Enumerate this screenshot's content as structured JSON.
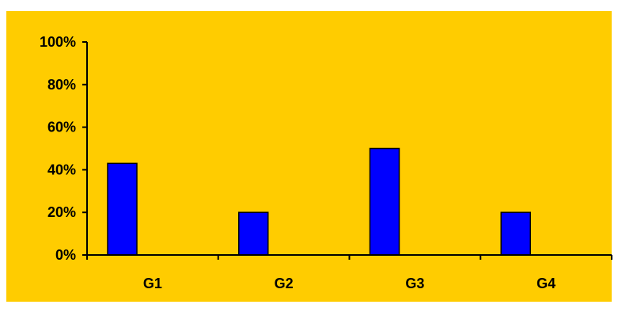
{
  "chart_data": {
    "type": "bar",
    "categories": [
      "G1",
      "G2",
      "G3",
      "G4"
    ],
    "values": [
      43,
      20,
      50,
      20
    ],
    "title": "",
    "xlabel": "",
    "ylabel": "",
    "ylim": [
      0,
      100
    ],
    "yticks": [
      "0%",
      "20%",
      "40%",
      "60%",
      "80%",
      "100%"
    ],
    "grid": false,
    "legend": "none"
  },
  "colors": {
    "plot_background": "#FFCC00",
    "page_background": "#FFFFFF",
    "bar_fill": "#0000FF",
    "bar_stroke": "#000000",
    "axis": "#000000"
  }
}
